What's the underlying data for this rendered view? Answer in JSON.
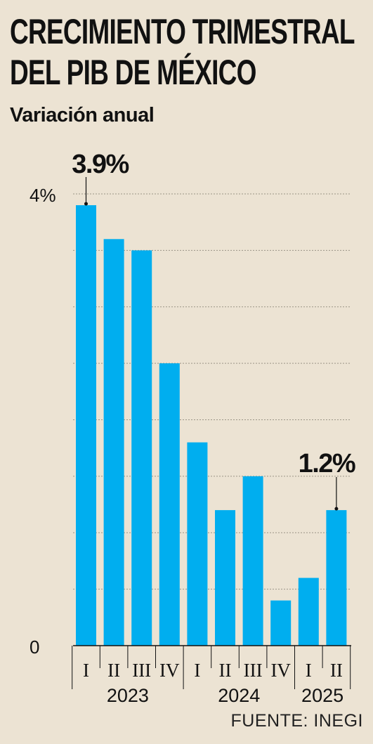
{
  "title_line1": "CRECIMIENTO TRIMESTRAL",
  "title_line2": "DEL PIB DE MÉXICO",
  "subtitle": "Variación anual",
  "source": "FUENTE: INEGI",
  "colors": {
    "bar": "#00aeef",
    "background": "#ece3d3",
    "text": "#111111"
  },
  "chart_data": {
    "type": "bar",
    "categories": [
      "I",
      "II",
      "III",
      "IV",
      "I",
      "II",
      "III",
      "IV",
      "I",
      "II"
    ],
    "years": [
      {
        "label": "2023",
        "start": 0,
        "end": 3
      },
      {
        "label": "2024",
        "start": 4,
        "end": 7
      },
      {
        "label": "2025",
        "start": 8,
        "end": 9
      }
    ],
    "values": [
      3.9,
      3.6,
      3.5,
      2.5,
      1.8,
      1.2,
      1.5,
      0.4,
      0.6,
      1.2
    ],
    "ylim": [
      0,
      4
    ],
    "yticks": [
      {
        "value": 4,
        "label": "4%"
      },
      {
        "value": 0,
        "label": "0"
      }
    ],
    "gridlines": [
      0.5,
      1,
      1.5,
      2,
      2.5,
      3,
      3.5,
      4
    ],
    "annotations": [
      {
        "index": 0,
        "text": "3.9%"
      },
      {
        "index": 9,
        "text": "1.2%"
      }
    ]
  }
}
